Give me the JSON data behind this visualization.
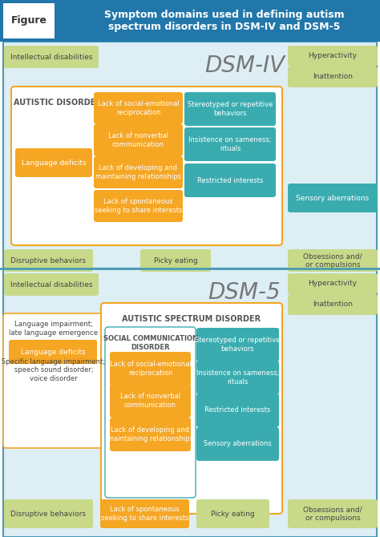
{
  "title": "Symptom domains used in defining autism\nspectrum disorders in DSM-IV and DSM-5",
  "figure_label": "Figure",
  "header_bg": "#2277aa",
  "header_text_color": "#ffffff",
  "panel_bg": "#ddeef5",
  "section_border_color": "#4a9ab5",
  "orange_color": "#f5a623",
  "teal_color": "#3aacb0",
  "green_color": "#c8d98a",
  "white_color": "#ffffff",
  "text_dark": "#444444",
  "text_mid": "#555555",
  "dsm4_orange_boxes": [
    "Lack of social-emotional\nreciprocation",
    "Lack of nonverbal\ncommunication",
    "Lack of developing and\nmaintaining relationships",
    "Lack of spontaneous\nseeking to share interests"
  ],
  "dsm4_teal_boxes": [
    "Stereotyped or repetitive\nbehaviors",
    "Insistence on sameness;\nrituals",
    "Restricted interests"
  ],
  "dsm5_orange_boxes": [
    "Lack of social-emotional\nreciprocation",
    "Lack of nonverbal\ncommunication",
    "Lack of developing and\nmaintaining relationships"
  ],
  "dsm5_teal_boxes": [
    "Stereotyped or repetitive\nbehaviors",
    "Insistence on sameness;\nrituals",
    "Restricted interests",
    "Sensory aberrations"
  ]
}
